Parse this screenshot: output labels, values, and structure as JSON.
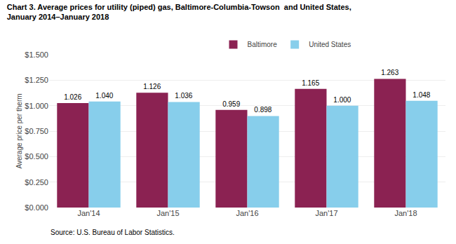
{
  "chart_data": {
    "type": "bar",
    "title": "Chart 3. Average prices for utility (piped) gas, Baltimore-Columbia-Towson  and United States,",
    "subtitle": "January 2014–January 2018",
    "y_label": "Average price per therm",
    "annotations": [
      "Source: U.S. Bureau of Labor Statistics."
    ],
    "categories": [
      "Jan'14",
      "Jan'15",
      "Jan'16",
      "Jan'17",
      "Jan'18"
    ],
    "series": [
      {
        "name": "Baltimore",
        "color": "#8B2252",
        "values": [
          1.026,
          1.126,
          0.959,
          1.165,
          1.263
        ]
      },
      {
        "name": "United States",
        "color": "#87CEEB",
        "values": [
          1.04,
          1.036,
          0.898,
          1.0,
          1.048
        ],
        "value_labels": [
          "1.040",
          "1.036",
          "0.898",
          "1.000",
          "1.048"
        ]
      }
    ],
    "ylim": [
      0,
      1.5
    ],
    "yticks": [
      {
        "value": 0.0,
        "label": "$0.000"
      },
      {
        "value": 0.25,
        "label": "$0.250"
      },
      {
        "value": 0.5,
        "label": "$0.500"
      },
      {
        "value": 0.75,
        "label": "$0.750"
      },
      {
        "value": 1.0,
        "label": "$1.000"
      },
      {
        "value": 1.25,
        "label": "$1.250"
      },
      {
        "value": 1.5,
        "label": "$1.500"
      }
    ],
    "grid": true,
    "legend": "upper center",
    "data_labels": true
  }
}
